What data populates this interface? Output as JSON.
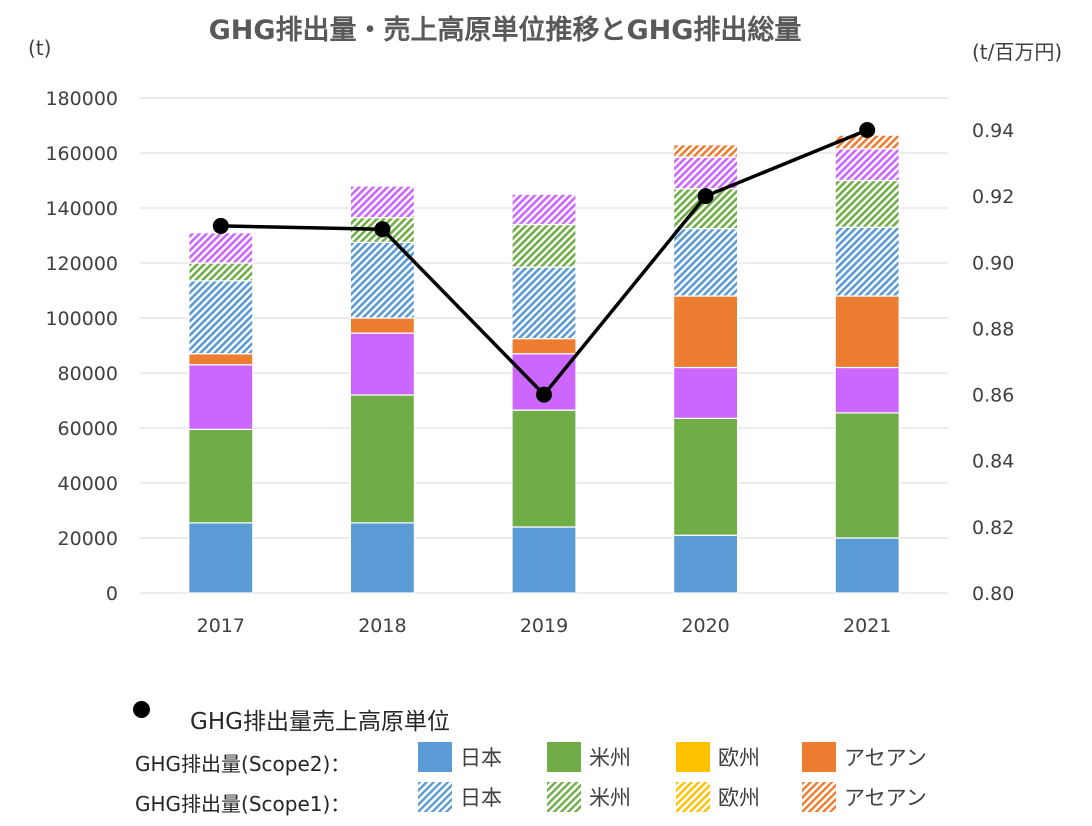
{
  "title": "GHG排出量・売上高原単位推移とGHG排出総量",
  "left_unit": "(t)",
  "right_unit": "(t/百万円)",
  "chart_data": {
    "type": "bar",
    "stacked": true,
    "categories": [
      "2017",
      "2018",
      "2019",
      "2020",
      "2021"
    ],
    "y_left": {
      "min": 0,
      "max": 180000,
      "step": 20000,
      "ticks": [
        "0",
        "20000",
        "40000",
        "60000",
        "80000",
        "100000",
        "120000",
        "140000",
        "160000",
        "180000"
      ]
    },
    "y_right": {
      "min": 0.8,
      "max": 0.95,
      "ticks": [
        "0.80",
        "0.82",
        "0.84",
        "0.86",
        "0.88",
        "0.90",
        "0.92",
        "0.94"
      ]
    },
    "grid": true,
    "series": [
      {
        "name": "日本",
        "group": "GHG排出量(Scope2)",
        "color": "#5B9BD5",
        "pattern": "solid",
        "values": [
          25500,
          25500,
          24000,
          21000,
          20000
        ]
      },
      {
        "name": "米州",
        "group": "GHG排出量(Scope2)",
        "color": "#70AD47",
        "pattern": "solid",
        "values": [
          34000,
          46500,
          42500,
          42500,
          45500
        ]
      },
      {
        "name": "",
        "color": "#CC66FF",
        "pattern": "solid",
        "values": [
          23500,
          22500,
          20500,
          18500,
          16500
        ]
      },
      {
        "name": "アセアン",
        "group": "GHG排出量(Scope2)",
        "color": "#ED7D31",
        "pattern": "solid",
        "values": [
          4000,
          5500,
          5500,
          26000,
          26000
        ]
      },
      {
        "name": "日本",
        "group": "GHG排出量(Scope1)",
        "color": "#5B9BD5",
        "pattern": "hatch",
        "values": [
          26500,
          27500,
          26000,
          24500,
          25000
        ]
      },
      {
        "name": "米州",
        "group": "GHG排出量(Scope1)",
        "color": "#70AD47",
        "pattern": "hatch",
        "values": [
          6500,
          9000,
          15500,
          14500,
          17000
        ]
      },
      {
        "name": "",
        "color": "#CC66FF",
        "pattern": "hatch",
        "values": [
          11000,
          11500,
          11000,
          11500,
          11500
        ]
      },
      {
        "name": "アセアン",
        "group": "GHG排出量(Scope1)",
        "color": "#ED7D31",
        "pattern": "hatch",
        "values": [
          0,
          0,
          0,
          4500,
          5000
        ]
      }
    ],
    "line": {
      "name": "GHG排出量売上高原単位",
      "color": "#000000",
      "values": [
        0.911,
        0.91,
        0.86,
        0.92,
        0.94
      ]
    }
  },
  "legend": {
    "line_label": "GHG排出量売上高原単位",
    "scope2_label": "GHG排出量(Scope2)：",
    "scope1_label": "GHG排出量(Scope1)：",
    "items": [
      {
        "label": "日本",
        "color": "#5B9BD5"
      },
      {
        "label": "米州",
        "color": "#70AD47"
      },
      {
        "label": "欧州",
        "color": "#FFC000"
      },
      {
        "label": "アセアン",
        "color": "#ED7D31"
      }
    ]
  }
}
